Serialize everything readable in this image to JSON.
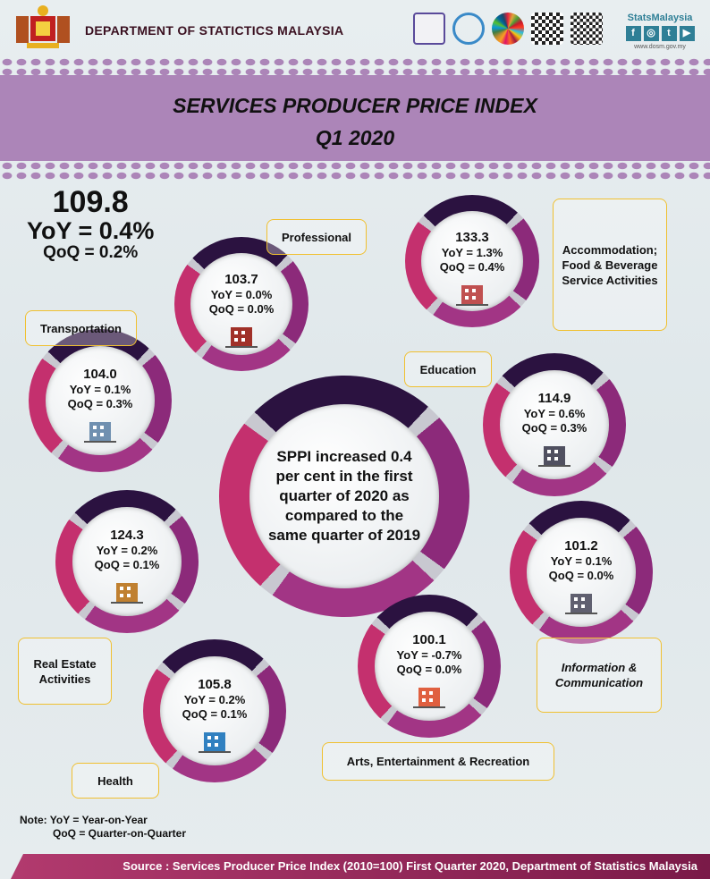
{
  "header": {
    "department": "DEPARTMENT OF STATICTICS MALAYSIA",
    "stats_brand": "StatsMalaysia",
    "website": "www.dosm.gov.my",
    "social": [
      "f",
      "◎",
      "t",
      "▶"
    ]
  },
  "title": {
    "line1": "SERVICES PRODUCER PRICE INDEX",
    "line2": "Q1 2020"
  },
  "overall": {
    "value": "109.8",
    "yoy": "YoY = 0.4%",
    "qoq": "QoQ = 0.2%"
  },
  "summary": "SPPI increased 0.4 per cent in the first quarter of 2020 as compared to the same quarter of 2019",
  "sectors": [
    {
      "label": "Professional",
      "value": "103.7",
      "yoy": "YoY = 0.0%",
      "qoq": "QoQ = 0.0%",
      "icon": "building-icon"
    },
    {
      "label": "Accommodation; Food & Beverage Service Activities",
      "value": "133.3",
      "yoy": "YoY = 1.3%",
      "qoq": "QoQ = 0.4%",
      "icon": "hotel-icon"
    },
    {
      "label": "Transportation",
      "value": "104.0",
      "yoy": "YoY = 0.1%",
      "qoq": "QoQ = 0.3%",
      "icon": "airplane-icon"
    },
    {
      "label": "Education",
      "value": "114.9",
      "yoy": "YoY = 0.6%",
      "qoq": "QoQ = 0.3%",
      "icon": "graduation-books-icon"
    },
    {
      "label": "Real Estate Activities",
      "value": "124.3",
      "yoy": "YoY = 0.2%",
      "qoq": "QoQ = 0.1%",
      "icon": "real-estate-icon"
    },
    {
      "label": "Information & Communication",
      "value": "101.2",
      "yoy": "YoY = 0.1%",
      "qoq": "QoQ = 0.0%",
      "icon": "satellite-dish-icon"
    },
    {
      "label": "Arts, Entertainment & Recreation",
      "value": "100.1",
      "yoy": "YoY = -0.7%",
      "qoq": "QoQ =  0.0%",
      "icon": "amusement-park-icon"
    },
    {
      "label": "Health",
      "value": "105.8",
      "yoy": "YoY = 0.2%",
      "qoq": "QoQ = 0.1%",
      "icon": "hospital-icon"
    }
  ],
  "note": {
    "line1": "Note: YoY = Year-on-Year",
    "line2": "QoQ = Quarter-on-Quarter"
  },
  "source": "Source  :  Services Producer Price Index (2010=100) First Quarter 2020, Department of Statistics Malaysia",
  "colors": {
    "band": "#ac85b8",
    "ring_magenta": "#c4306e",
    "ring_purple": "#8c2a7a",
    "ring_dark": "#2b1240",
    "label_border": "#f0c030"
  }
}
